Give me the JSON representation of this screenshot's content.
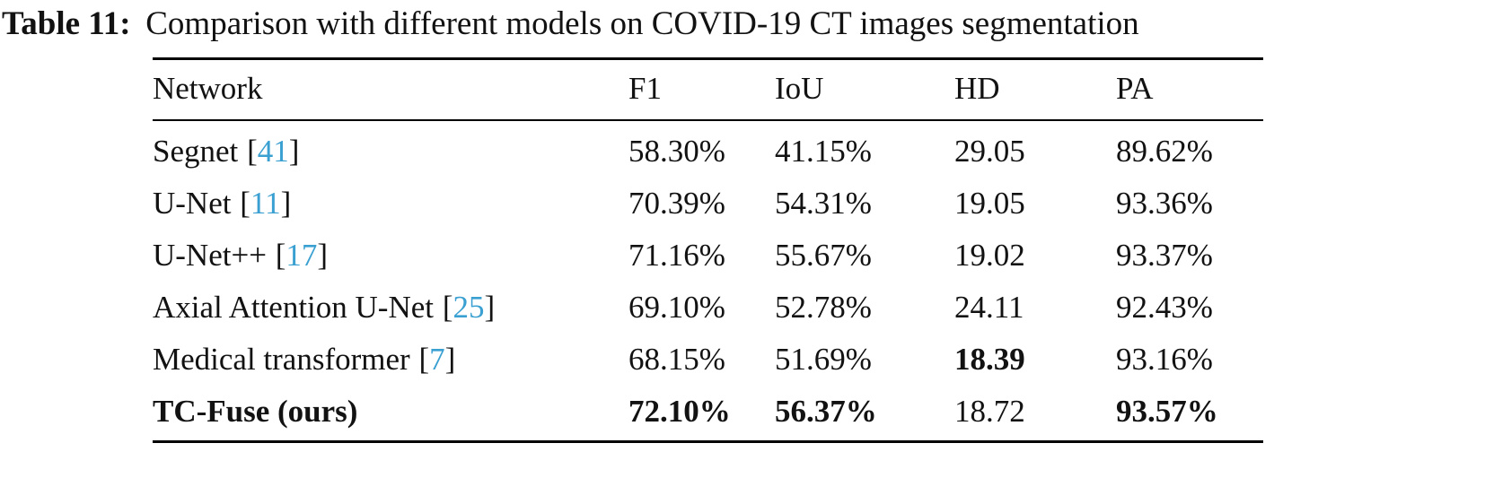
{
  "title": {
    "label": "Table 11:",
    "text": "Comparison with different models on COVID-19 CT images segmentation"
  },
  "punct": {
    "open": "[",
    "close": "]"
  },
  "colors": {
    "citation_link": "#3aa0d1",
    "text": "#121212",
    "background": "#ffffff"
  },
  "table": {
    "headers": [
      "Network",
      "F1",
      "IoU",
      "HD",
      "PA"
    ],
    "rows": [
      {
        "name": "Segnet",
        "cite": "41",
        "f1": "58.30%",
        "iou": "41.15%",
        "hd": "29.05",
        "pa": "89.62%"
      },
      {
        "name": "U-Net",
        "cite": "11",
        "f1": "70.39%",
        "iou": "54.31%",
        "hd": "19.05",
        "pa": "93.36%"
      },
      {
        "name": "U-Net++",
        "cite": "17",
        "f1": "71.16%",
        "iou": "55.67%",
        "hd": "19.02",
        "pa": "93.37%"
      },
      {
        "name": "Axial Attention U-Net",
        "cite": "25",
        "f1": "69.10%",
        "iou": "52.78%",
        "hd": "24.11",
        "pa": "92.43%"
      },
      {
        "name": "Medical transformer",
        "cite": "7",
        "f1": "68.15%",
        "iou": "51.69%",
        "hd": "18.39",
        "pa": "93.16%"
      },
      {
        "name": "TC-Fuse (ours)",
        "f1": "72.10%",
        "iou": "56.37%",
        "hd": "18.72",
        "pa": "93.57%"
      }
    ]
  }
}
